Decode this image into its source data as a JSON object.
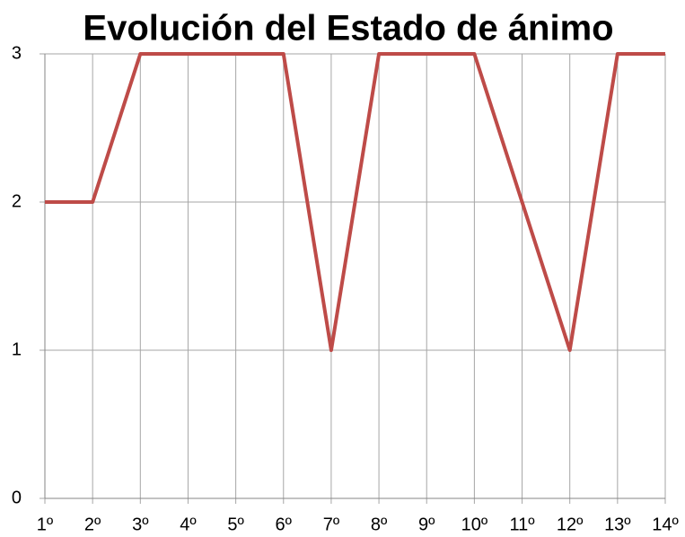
{
  "chart_data": {
    "type": "line",
    "title": "Evolución del Estado de ánimo",
    "categories": [
      "1º",
      "2º",
      "3º",
      "4º",
      "5º",
      "6º",
      "7º",
      "8º",
      "9º",
      "10º",
      "11º",
      "12º",
      "13º",
      "14º"
    ],
    "series": [
      {
        "color": "#be4b48",
        "values": [
          2,
          2,
          3,
          3,
          3,
          3,
          1,
          3,
          3,
          3,
          2,
          1,
          3,
          3
        ]
      }
    ],
    "ylim": [
      0,
      3
    ],
    "yticks": [
      0,
      1,
      2,
      3
    ],
    "grid": true
  }
}
